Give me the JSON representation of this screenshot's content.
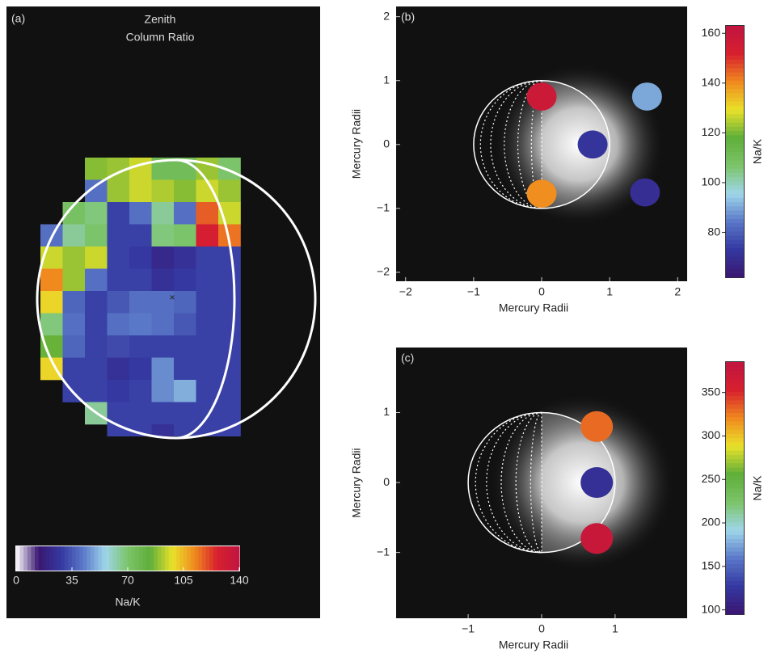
{
  "chart_data": [
    {
      "type": "heatmap",
      "panel": "(a)",
      "title": "Zenith",
      "subtitle": "Column Ratio",
      "values": [
        [
          null,
          null,
          88,
          90,
          95,
          75,
          75,
          90,
          70
        ],
        [
          null,
          null,
          40,
          90,
          95,
          92,
          88,
          95,
          90
        ],
        [
          null,
          72,
          68,
          30,
          40,
          65,
          40,
          118,
          95
        ],
        [
          40,
          65,
          70,
          30,
          30,
          68,
          70,
          128,
          115
        ],
        [
          95,
          90,
          95,
          30,
          28,
          22,
          25,
          30,
          30
        ],
        [
          112,
          90,
          40,
          30,
          30,
          25,
          28,
          30,
          30
        ],
        [
          100,
          38,
          30,
          35,
          40,
          40,
          38,
          30,
          30
        ],
        [
          68,
          40,
          30,
          40,
          42,
          40,
          35,
          30,
          30
        ],
        [
          85,
          38,
          30,
          32,
          30,
          30,
          30,
          30,
          30
        ],
        [
          100,
          30,
          30,
          25,
          28,
          45,
          30,
          30,
          30
        ],
        [
          null,
          30,
          30,
          28,
          30,
          45,
          50,
          30,
          30
        ],
        [
          null,
          null,
          65,
          30,
          30,
          30,
          30,
          30,
          30
        ],
        [
          null,
          null,
          null,
          30,
          30,
          25,
          30,
          30,
          30
        ]
      ],
      "zlim": [
        0,
        140
      ],
      "zticks": [
        0,
        35,
        70,
        105,
        140
      ],
      "colorbar_label": "Na/K",
      "colormap": [
        "#ffffff",
        "#3a1670",
        "#3438a0",
        "#5a78c8",
        "#9fd6ea",
        "#7cc46a",
        "#5fae3a",
        "#e9e22a",
        "#f08a1e",
        "#d8202e",
        "#c01440"
      ]
    },
    {
      "type": "scatter",
      "panel": "(b)",
      "xlabel": "Mercury Radii",
      "ylabel": "Mercury Radii",
      "x": [
        0,
        0.75,
        0,
        1.55,
        1.52
      ],
      "values": [
        0.75,
        0,
        -0.77,
        0.75,
        -0.75
      ],
      "z": [
        158,
        72,
        140,
        90,
        70
      ],
      "xlim": [
        -2.14,
        2.14
      ],
      "ylim": [
        -2.14,
        2.16
      ],
      "xticks": [
        {
          "value": -2,
          "label": "−2"
        },
        {
          "value": -1,
          "label": "−1"
        },
        0,
        1,
        2
      ],
      "yticks": [
        {
          "value": -2,
          "label": "−2"
        },
        {
          "value": -1,
          "label": "−1"
        },
        0,
        1,
        2
      ],
      "zlim": [
        62,
        163
      ],
      "zticks": [
        80,
        100,
        120,
        140,
        160
      ],
      "colorbar_label": "Na/K",
      "colormap": [
        "#3a1670",
        "#3438a0",
        "#5a78c8",
        "#9fd6ea",
        "#7cc46a",
        "#5fae3a",
        "#e9e22a",
        "#f08a1e",
        "#d8202e",
        "#c01440"
      ]
    },
    {
      "type": "scatter",
      "panel": "(c)",
      "xlabel": "Mercury Radii",
      "ylabel": "Mercury Radii",
      "x": [
        0.75,
        0.75,
        0.75
      ],
      "values": [
        0.8,
        0,
        -0.8
      ],
      "z": [
        330,
        120,
        375
      ],
      "xlim": [
        -1.98,
        1.98
      ],
      "ylim": [
        -1.94,
        1.93
      ],
      "xticks": [
        {
          "value": -1,
          "label": "−1"
        },
        0,
        1
      ],
      "yticks": [
        {
          "value": -1,
          "label": "−1"
        },
        0,
        1
      ],
      "zlim": [
        95,
        385
      ],
      "zticks": [
        100,
        150,
        200,
        250,
        300,
        350
      ],
      "colorbar_label": "Na/K",
      "colormap": [
        "#3a1670",
        "#3438a0",
        "#5a78c8",
        "#9fd6ea",
        "#7cc46a",
        "#5fae3a",
        "#e9e22a",
        "#f08a1e",
        "#d8202e",
        "#c01440"
      ]
    }
  ]
}
